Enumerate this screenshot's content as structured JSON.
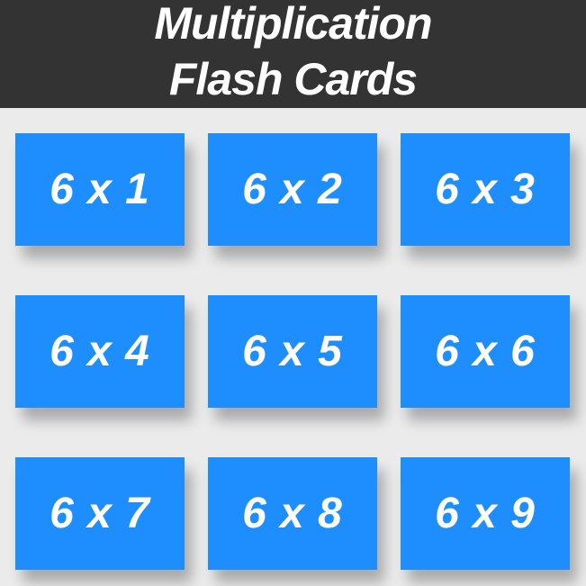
{
  "header": {
    "title_line1": "Multiplication",
    "title_line2": "Flash Cards"
  },
  "cards": [
    {
      "label": "6 x 1"
    },
    {
      "label": "6 x 2"
    },
    {
      "label": "6 x 3"
    },
    {
      "label": "6 x 4"
    },
    {
      "label": "6 x 5"
    },
    {
      "label": "6 x 6"
    },
    {
      "label": "6 x 7"
    },
    {
      "label": "6 x 8"
    },
    {
      "label": "6 x 9"
    }
  ],
  "colors": {
    "header_background": "#333333",
    "page_background": "#ebebeb",
    "card_background": "#1e8eff",
    "text": "#ffffff"
  }
}
